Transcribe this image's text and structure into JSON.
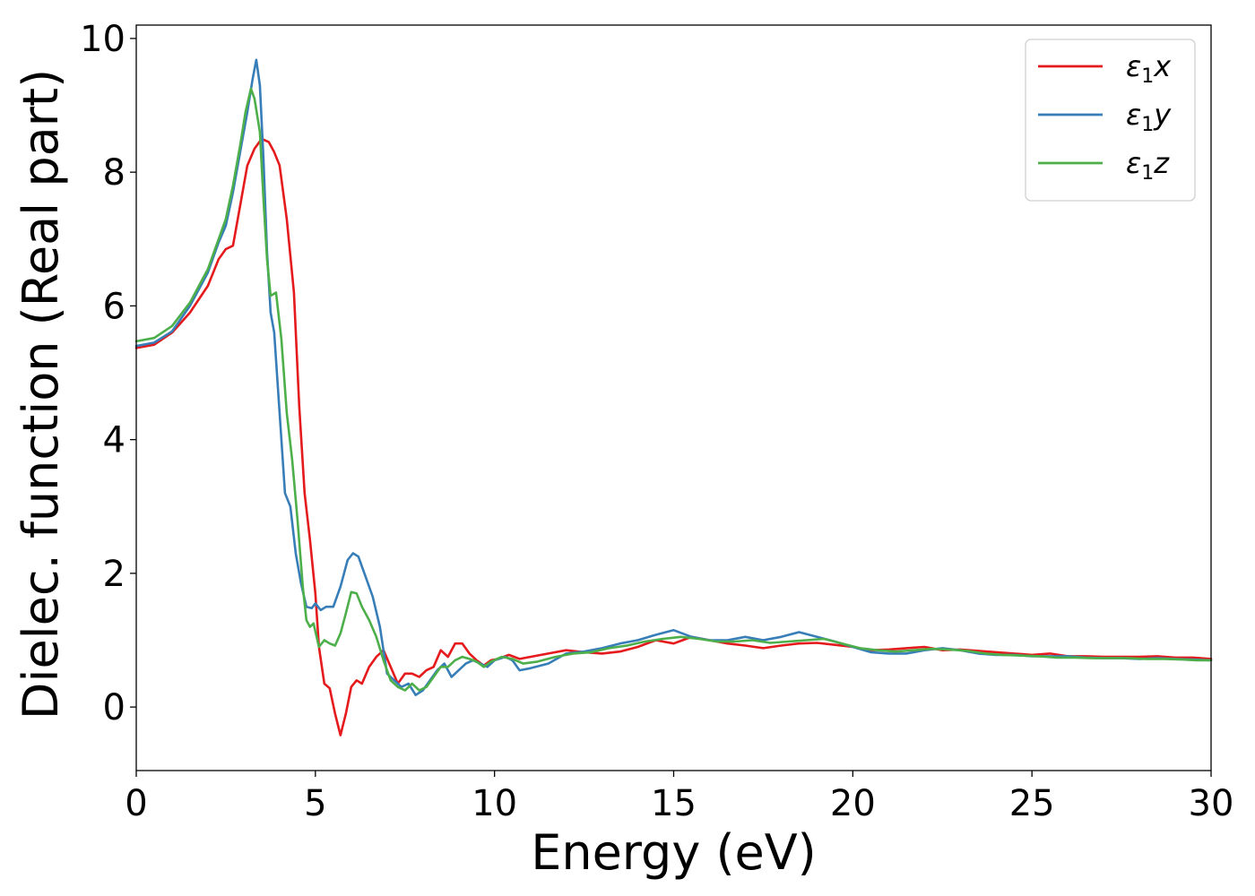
{
  "chart_data": {
    "type": "line",
    "xlabel": "Energy (eV)",
    "ylabel": "Dielec. function (Real part)",
    "xlim": [
      0,
      30
    ],
    "ylim": [
      -0.95,
      10.2
    ],
    "xticks": [
      0,
      5,
      10,
      15,
      20,
      25,
      30
    ],
    "xtick_labels": [
      "0",
      "5",
      "10",
      "15",
      "20",
      "25",
      "30"
    ],
    "yticks": [
      0,
      2,
      4,
      6,
      8,
      10
    ],
    "ytick_labels": [
      "0",
      "2",
      "4",
      "6",
      "8",
      "10"
    ],
    "grid": false,
    "legend_position": "upper right",
    "series": [
      {
        "name": "ε1x",
        "label_main": "ε",
        "label_sub": "1",
        "label_tail": "x",
        "color": "#e41a1c",
        "points": [
          [
            0,
            5.37
          ],
          [
            0.5,
            5.42
          ],
          [
            1,
            5.6
          ],
          [
            1.5,
            5.9
          ],
          [
            2,
            6.3
          ],
          [
            2.3,
            6.7
          ],
          [
            2.5,
            6.85
          ],
          [
            2.7,
            6.9
          ],
          [
            2.9,
            7.5
          ],
          [
            3.1,
            8.1
          ],
          [
            3.3,
            8.35
          ],
          [
            3.5,
            8.5
          ],
          [
            3.7,
            8.45
          ],
          [
            3.85,
            8.3
          ],
          [
            4.0,
            8.1
          ],
          [
            4.2,
            7.3
          ],
          [
            4.4,
            6.2
          ],
          [
            4.55,
            4.5
          ],
          [
            4.7,
            3.2
          ],
          [
            4.85,
            2.5
          ],
          [
            5.0,
            1.7
          ],
          [
            5.1,
            0.9
          ],
          [
            5.25,
            0.35
          ],
          [
            5.4,
            0.28
          ],
          [
            5.55,
            -0.1
          ],
          [
            5.7,
            -0.42
          ],
          [
            5.85,
            -0.1
          ],
          [
            6.0,
            0.3
          ],
          [
            6.15,
            0.4
          ],
          [
            6.3,
            0.35
          ],
          [
            6.5,
            0.6
          ],
          [
            6.7,
            0.75
          ],
          [
            6.9,
            0.85
          ],
          [
            7.1,
            0.6
          ],
          [
            7.3,
            0.35
          ],
          [
            7.5,
            0.5
          ],
          [
            7.7,
            0.5
          ],
          [
            7.9,
            0.45
          ],
          [
            8.1,
            0.55
          ],
          [
            8.3,
            0.6
          ],
          [
            8.5,
            0.85
          ],
          [
            8.7,
            0.75
          ],
          [
            8.9,
            0.95
          ],
          [
            9.1,
            0.95
          ],
          [
            9.3,
            0.8
          ],
          [
            9.5,
            0.7
          ],
          [
            9.7,
            0.62
          ],
          [
            9.9,
            0.7
          ],
          [
            10.1,
            0.72
          ],
          [
            10.4,
            0.78
          ],
          [
            10.7,
            0.72
          ],
          [
            11,
            0.75
          ],
          [
            11.5,
            0.8
          ],
          [
            12,
            0.85
          ],
          [
            12.5,
            0.82
          ],
          [
            13,
            0.8
          ],
          [
            13.5,
            0.83
          ],
          [
            14,
            0.9
          ],
          [
            14.5,
            1.0
          ],
          [
            15,
            0.95
          ],
          [
            15.5,
            1.05
          ],
          [
            16,
            1.0
          ],
          [
            16.5,
            0.95
          ],
          [
            17,
            0.92
          ],
          [
            17.5,
            0.88
          ],
          [
            18,
            0.92
          ],
          [
            18.5,
            0.95
          ],
          [
            19,
            0.96
          ],
          [
            19.5,
            0.93
          ],
          [
            20,
            0.9
          ],
          [
            20.5,
            0.85
          ],
          [
            21,
            0.86
          ],
          [
            21.5,
            0.88
          ],
          [
            22,
            0.9
          ],
          [
            22.5,
            0.85
          ],
          [
            23,
            0.86
          ],
          [
            23.5,
            0.84
          ],
          [
            24,
            0.82
          ],
          [
            24.5,
            0.8
          ],
          [
            25,
            0.78
          ],
          [
            25.5,
            0.8
          ],
          [
            26,
            0.76
          ],
          [
            26.5,
            0.76
          ],
          [
            27,
            0.75
          ],
          [
            27.5,
            0.75
          ],
          [
            28,
            0.75
          ],
          [
            28.5,
            0.76
          ],
          [
            29,
            0.74
          ],
          [
            29.5,
            0.74
          ],
          [
            30,
            0.72
          ]
        ]
      },
      {
        "name": "ε1y",
        "label_main": "ε",
        "label_sub": "1",
        "label_tail": "y",
        "color": "#377eb8",
        "points": [
          [
            0,
            5.4
          ],
          [
            0.5,
            5.45
          ],
          [
            1,
            5.62
          ],
          [
            1.5,
            6.0
          ],
          [
            2,
            6.5
          ],
          [
            2.3,
            6.95
          ],
          [
            2.5,
            7.2
          ],
          [
            2.7,
            7.7
          ],
          [
            2.9,
            8.3
          ],
          [
            3.1,
            8.9
          ],
          [
            3.25,
            9.4
          ],
          [
            3.35,
            9.68
          ],
          [
            3.45,
            9.3
          ],
          [
            3.55,
            8.2
          ],
          [
            3.65,
            6.8
          ],
          [
            3.75,
            5.9
          ],
          [
            3.85,
            5.6
          ],
          [
            4.0,
            4.4
          ],
          [
            4.15,
            3.2
          ],
          [
            4.3,
            3.0
          ],
          [
            4.45,
            2.3
          ],
          [
            4.6,
            1.85
          ],
          [
            4.75,
            1.5
          ],
          [
            4.9,
            1.48
          ],
          [
            5.0,
            1.55
          ],
          [
            5.15,
            1.45
          ],
          [
            5.3,
            1.5
          ],
          [
            5.5,
            1.5
          ],
          [
            5.7,
            1.8
          ],
          [
            5.9,
            2.2
          ],
          [
            6.05,
            2.3
          ],
          [
            6.2,
            2.25
          ],
          [
            6.4,
            1.95
          ],
          [
            6.6,
            1.65
          ],
          [
            6.8,
            1.2
          ],
          [
            7.0,
            0.5
          ],
          [
            7.2,
            0.4
          ],
          [
            7.4,
            0.3
          ],
          [
            7.6,
            0.35
          ],
          [
            7.8,
            0.18
          ],
          [
            8.0,
            0.25
          ],
          [
            8.2,
            0.4
          ],
          [
            8.4,
            0.55
          ],
          [
            8.6,
            0.65
          ],
          [
            8.8,
            0.45
          ],
          [
            9.0,
            0.55
          ],
          [
            9.2,
            0.65
          ],
          [
            9.4,
            0.7
          ],
          [
            9.6,
            0.65
          ],
          [
            9.8,
            0.6
          ],
          [
            10.0,
            0.7
          ],
          [
            10.3,
            0.75
          ],
          [
            10.5,
            0.7
          ],
          [
            10.7,
            0.55
          ],
          [
            11,
            0.58
          ],
          [
            11.5,
            0.65
          ],
          [
            12,
            0.8
          ],
          [
            12.5,
            0.83
          ],
          [
            13,
            0.88
          ],
          [
            13.5,
            0.95
          ],
          [
            14,
            1.0
          ],
          [
            14.5,
            1.08
          ],
          [
            15,
            1.15
          ],
          [
            15.5,
            1.05
          ],
          [
            16,
            1.0
          ],
          [
            16.5,
            1.0
          ],
          [
            17,
            1.05
          ],
          [
            17.5,
            1.0
          ],
          [
            18,
            1.05
          ],
          [
            18.5,
            1.12
          ],
          [
            19,
            1.05
          ],
          [
            19.5,
            0.98
          ],
          [
            20,
            0.9
          ],
          [
            20.5,
            0.82
          ],
          [
            21,
            0.8
          ],
          [
            21.5,
            0.8
          ],
          [
            22,
            0.85
          ],
          [
            22.5,
            0.88
          ],
          [
            23,
            0.85
          ],
          [
            23.5,
            0.8
          ],
          [
            24,
            0.78
          ],
          [
            24.5,
            0.78
          ],
          [
            25,
            0.76
          ],
          [
            25.5,
            0.76
          ],
          [
            26,
            0.76
          ],
          [
            26.5,
            0.74
          ],
          [
            27,
            0.73
          ],
          [
            27.5,
            0.73
          ],
          [
            28,
            0.72
          ],
          [
            28.5,
            0.73
          ],
          [
            29,
            0.72
          ],
          [
            29.5,
            0.71
          ],
          [
            30,
            0.7
          ]
        ]
      },
      {
        "name": "ε1z",
        "label_main": "ε",
        "label_sub": "1",
        "label_tail": "z",
        "color": "#4daf4a",
        "points": [
          [
            0,
            5.47
          ],
          [
            0.5,
            5.52
          ],
          [
            1,
            5.7
          ],
          [
            1.5,
            6.05
          ],
          [
            2,
            6.55
          ],
          [
            2.3,
            7.0
          ],
          [
            2.5,
            7.3
          ],
          [
            2.7,
            7.8
          ],
          [
            2.9,
            8.4
          ],
          [
            3.05,
            8.9
          ],
          [
            3.2,
            9.25
          ],
          [
            3.3,
            9.1
          ],
          [
            3.45,
            8.6
          ],
          [
            3.55,
            7.6
          ],
          [
            3.65,
            6.7
          ],
          [
            3.75,
            6.15
          ],
          [
            3.9,
            6.2
          ],
          [
            4.05,
            5.5
          ],
          [
            4.2,
            4.4
          ],
          [
            4.35,
            3.7
          ],
          [
            4.5,
            2.8
          ],
          [
            4.65,
            1.8
          ],
          [
            4.75,
            1.3
          ],
          [
            4.85,
            1.2
          ],
          [
            4.95,
            1.25
          ],
          [
            5.1,
            0.9
          ],
          [
            5.25,
            1.0
          ],
          [
            5.4,
            0.95
          ],
          [
            5.55,
            0.92
          ],
          [
            5.7,
            1.1
          ],
          [
            5.85,
            1.4
          ],
          [
            6.0,
            1.72
          ],
          [
            6.15,
            1.7
          ],
          [
            6.3,
            1.5
          ],
          [
            6.5,
            1.3
          ],
          [
            6.7,
            1.05
          ],
          [
            6.9,
            0.7
          ],
          [
            7.1,
            0.4
          ],
          [
            7.3,
            0.3
          ],
          [
            7.5,
            0.25
          ],
          [
            7.7,
            0.35
          ],
          [
            7.9,
            0.25
          ],
          [
            8.1,
            0.3
          ],
          [
            8.3,
            0.45
          ],
          [
            8.5,
            0.6
          ],
          [
            8.7,
            0.6
          ],
          [
            8.9,
            0.7
          ],
          [
            9.1,
            0.75
          ],
          [
            9.3,
            0.72
          ],
          [
            9.5,
            0.68
          ],
          [
            9.7,
            0.6
          ],
          [
            9.9,
            0.68
          ],
          [
            10.2,
            0.75
          ],
          [
            10.5,
            0.72
          ],
          [
            10.8,
            0.65
          ],
          [
            11.2,
            0.68
          ],
          [
            11.7,
            0.75
          ],
          [
            12.2,
            0.8
          ],
          [
            12.7,
            0.82
          ],
          [
            13.2,
            0.88
          ],
          [
            13.7,
            0.92
          ],
          [
            14.2,
            0.98
          ],
          [
            14.7,
            1.02
          ],
          [
            15.2,
            1.05
          ],
          [
            15.7,
            1.02
          ],
          [
            16.2,
            0.98
          ],
          [
            16.7,
            0.98
          ],
          [
            17.2,
            1.0
          ],
          [
            17.7,
            0.96
          ],
          [
            18.2,
            0.98
          ],
          [
            18.7,
            1.0
          ],
          [
            19.2,
            1.02
          ],
          [
            19.7,
            0.95
          ],
          [
            20.2,
            0.88
          ],
          [
            20.7,
            0.85
          ],
          [
            21.2,
            0.83
          ],
          [
            21.7,
            0.85
          ],
          [
            22.2,
            0.87
          ],
          [
            22.7,
            0.86
          ],
          [
            23.2,
            0.84
          ],
          [
            23.7,
            0.8
          ],
          [
            24.2,
            0.78
          ],
          [
            24.7,
            0.77
          ],
          [
            25.2,
            0.76
          ],
          [
            25.7,
            0.74
          ],
          [
            26.2,
            0.74
          ],
          [
            26.7,
            0.73
          ],
          [
            27.2,
            0.73
          ],
          [
            27.7,
            0.73
          ],
          [
            28.2,
            0.72
          ],
          [
            28.7,
            0.72
          ],
          [
            29.2,
            0.71
          ],
          [
            29.6,
            0.7
          ],
          [
            30,
            0.7
          ]
        ]
      }
    ]
  }
}
